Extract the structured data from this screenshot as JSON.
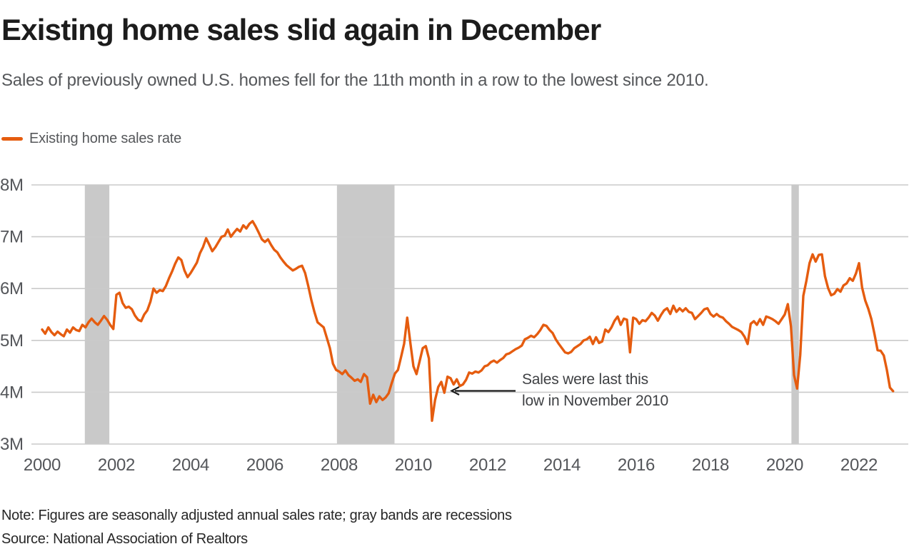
{
  "header": {
    "title": "Existing home sales slid again in December",
    "subtitle": "Sales of previously owned U.S. homes fell for the 11th month in a row to the lowest since 2010."
  },
  "legend": {
    "label": "Existing home sales rate"
  },
  "annotation": {
    "line1": "Sales were last this",
    "line2": "low in November 2010"
  },
  "footer": {
    "note": "Note: Figures are seasonally adjusted annual sales rate; gray bands are recessions",
    "source": "Source: National Association of Realtors"
  },
  "colors": {
    "line": "#e55c0f",
    "recession_band": "#c9c9c9",
    "gridline": "#cacaca",
    "axis_text": "#54565a",
    "arrow": "#1a1a1a"
  },
  "chart_data": {
    "type": "line",
    "title": "Existing home sales slid again in December",
    "ylabel": "Seasonally adjusted annual sales rate",
    "unit": "millions of homes (SAAR)",
    "ylim": [
      3,
      8
    ],
    "grid": "horizontal",
    "legend_position": "top-left",
    "y_ticks": [
      {
        "value": 3,
        "label": "3M"
      },
      {
        "value": 4,
        "label": "4M"
      },
      {
        "value": 5,
        "label": "5M"
      },
      {
        "value": 6,
        "label": "6M"
      },
      {
        "value": 7,
        "label": "7M"
      },
      {
        "value": 8,
        "label": "8M"
      }
    ],
    "x_ticks": [
      {
        "year": 2000,
        "label": "2000"
      },
      {
        "year": 2002,
        "label": "2002"
      },
      {
        "year": 2004,
        "label": "2004"
      },
      {
        "year": 2006,
        "label": "2006"
      },
      {
        "year": 2008,
        "label": "2008"
      },
      {
        "year": 2010,
        "label": "2010"
      },
      {
        "year": 2012,
        "label": "2012"
      },
      {
        "year": 2014,
        "label": "2014"
      },
      {
        "year": 2016,
        "label": "2016"
      },
      {
        "year": 2018,
        "label": "2018"
      },
      {
        "year": 2020,
        "label": "2020"
      },
      {
        "year": 2022,
        "label": "2022"
      }
    ],
    "recessions": [
      {
        "start_year": 2001.15,
        "end_year": 2001.81
      },
      {
        "start_year": 2007.94,
        "end_year": 2009.49
      },
      {
        "start_year": 2020.18,
        "end_year": 2020.38
      }
    ],
    "series": [
      {
        "name": "Existing home sales rate",
        "start": "2000-01",
        "frequency": "monthly",
        "values": [
          5.21,
          5.13,
          5.25,
          5.16,
          5.1,
          5.17,
          5.12,
          5.08,
          5.21,
          5.15,
          5.25,
          5.2,
          5.18,
          5.3,
          5.25,
          5.35,
          5.42,
          5.35,
          5.3,
          5.38,
          5.47,
          5.4,
          5.3,
          5.22,
          5.88,
          5.92,
          5.72,
          5.63,
          5.65,
          5.6,
          5.48,
          5.4,
          5.37,
          5.5,
          5.58,
          5.75,
          6.0,
          5.92,
          5.97,
          5.95,
          6.05,
          6.2,
          6.33,
          6.48,
          6.6,
          6.55,
          6.35,
          6.22,
          6.3,
          6.4,
          6.5,
          6.68,
          6.8,
          6.97,
          6.85,
          6.72,
          6.8,
          6.9,
          7.0,
          7.02,
          7.14,
          7.0,
          7.08,
          7.15,
          7.1,
          7.22,
          7.16,
          7.25,
          7.3,
          7.2,
          7.08,
          6.95,
          6.9,
          6.95,
          6.84,
          6.75,
          6.7,
          6.6,
          6.52,
          6.45,
          6.4,
          6.35,
          6.38,
          6.42,
          6.44,
          6.3,
          6.05,
          5.78,
          5.55,
          5.35,
          5.3,
          5.25,
          5.05,
          4.85,
          4.55,
          4.43,
          4.4,
          4.35,
          4.42,
          4.33,
          4.28,
          4.22,
          4.25,
          4.2,
          4.35,
          4.29,
          3.78,
          3.95,
          3.81,
          3.92,
          3.85,
          3.9,
          3.98,
          4.18,
          4.36,
          4.43,
          4.68,
          4.94,
          5.44,
          4.95,
          4.5,
          4.35,
          4.6,
          4.85,
          4.89,
          4.65,
          3.45,
          3.85,
          4.1,
          4.2,
          3.99,
          4.3,
          4.27,
          4.15,
          4.25,
          4.12,
          4.15,
          4.24,
          4.38,
          4.36,
          4.4,
          4.38,
          4.42,
          4.5,
          4.52,
          4.58,
          4.61,
          4.57,
          4.62,
          4.66,
          4.73,
          4.75,
          4.79,
          4.83,
          4.86,
          4.9,
          5.02,
          5.05,
          5.09,
          5.06,
          5.12,
          5.2,
          5.3,
          5.28,
          5.2,
          5.14,
          5.02,
          4.93,
          4.85,
          4.77,
          4.75,
          4.78,
          4.85,
          4.89,
          4.93,
          5.0,
          5.02,
          5.07,
          4.93,
          5.06,
          4.95,
          4.98,
          5.21,
          5.16,
          5.25,
          5.38,
          5.46,
          5.3,
          5.42,
          5.4,
          4.77,
          5.44,
          5.41,
          5.32,
          5.39,
          5.37,
          5.44,
          5.53,
          5.48,
          5.38,
          5.49,
          5.58,
          5.62,
          5.51,
          5.67,
          5.55,
          5.62,
          5.56,
          5.62,
          5.55,
          5.53,
          5.41,
          5.47,
          5.53,
          5.6,
          5.62,
          5.51,
          5.46,
          5.51,
          5.46,
          5.44,
          5.37,
          5.32,
          5.26,
          5.23,
          5.2,
          5.16,
          5.07,
          4.93,
          5.32,
          5.37,
          5.3,
          5.41,
          5.3,
          5.46,
          5.44,
          5.41,
          5.37,
          5.32,
          5.41,
          5.5,
          5.7,
          5.27,
          4.33,
          4.07,
          4.72,
          5.86,
          6.15,
          6.49,
          6.66,
          6.52,
          6.65,
          6.66,
          6.24,
          6.01,
          5.87,
          5.9,
          5.99,
          5.94,
          6.06,
          6.1,
          6.2,
          6.15,
          6.29,
          6.49,
          6.02,
          5.77,
          5.61,
          5.41,
          5.12,
          4.81,
          4.8,
          4.71,
          4.43,
          4.09,
          4.02
        ]
      }
    ]
  }
}
